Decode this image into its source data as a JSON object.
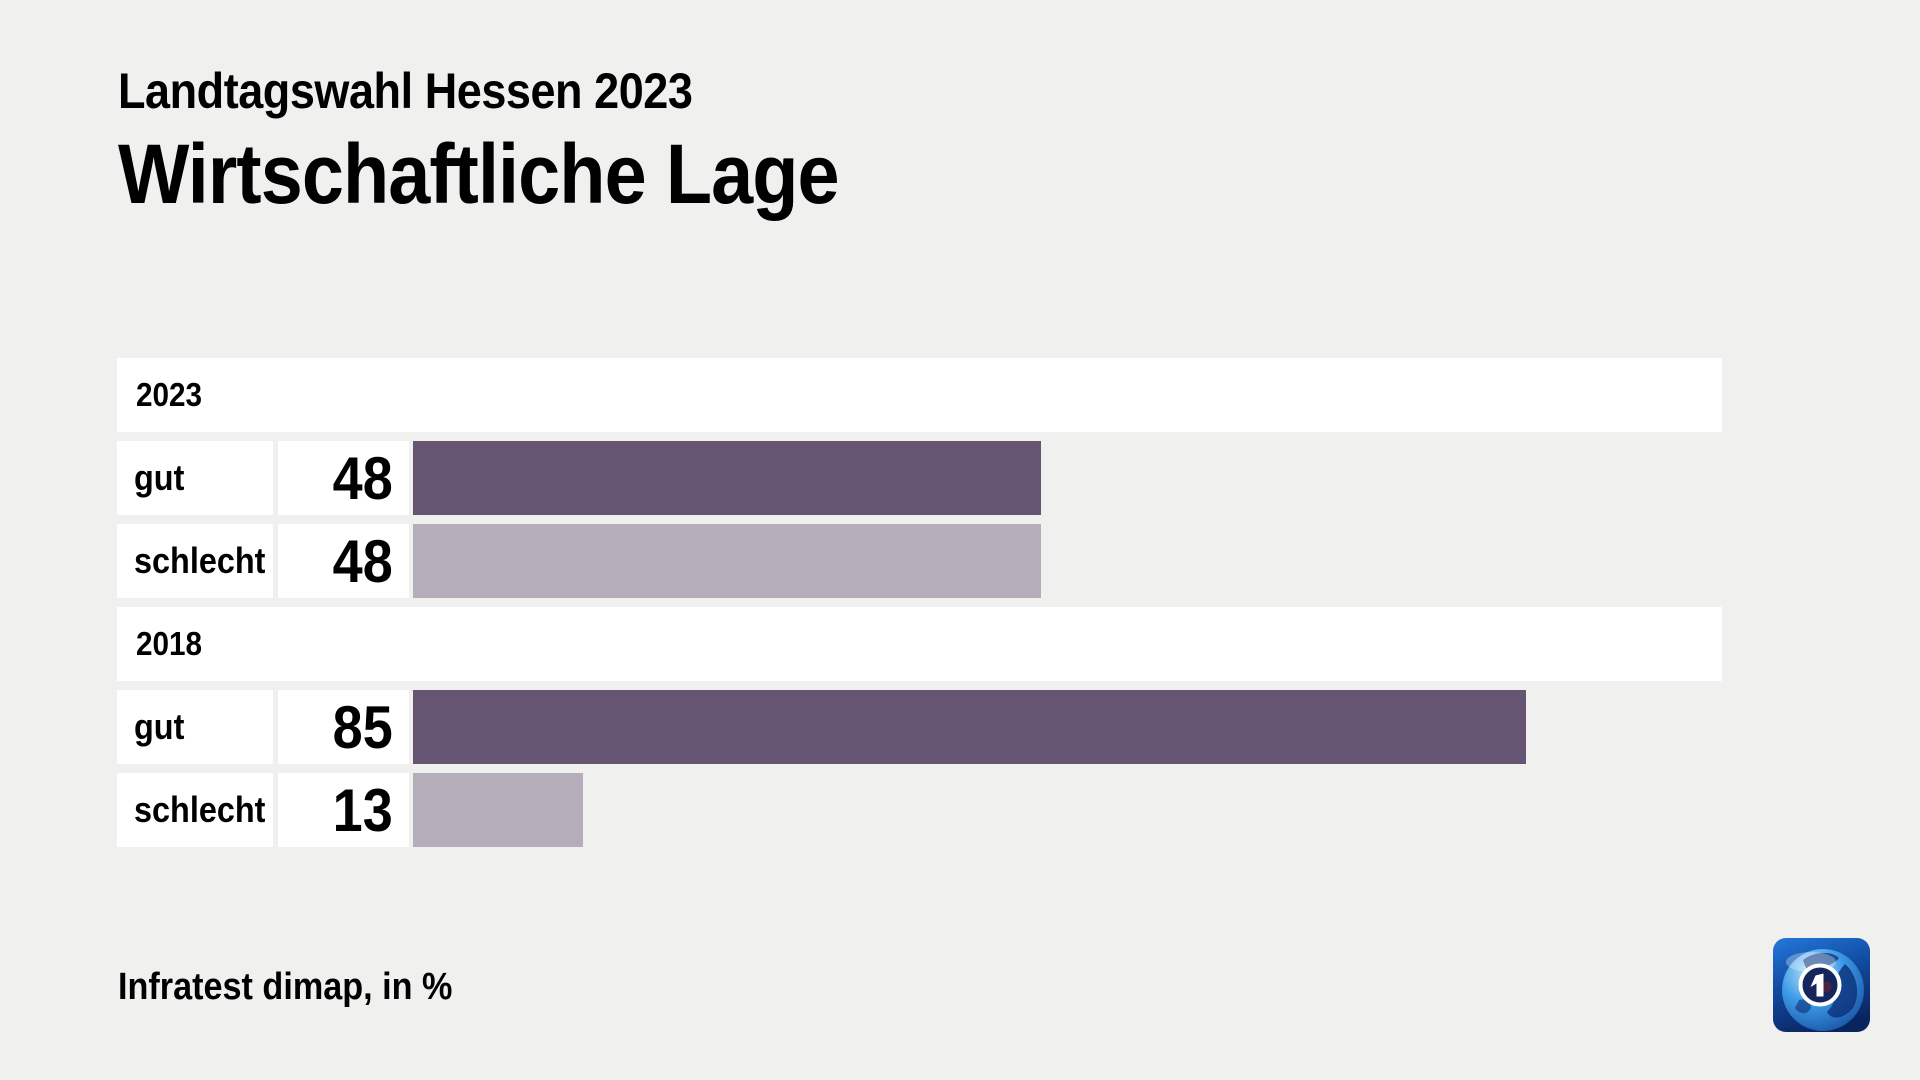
{
  "header": {
    "kicker": "Landtagswahl Hessen 2023",
    "title": "Wirtschaftliche Lage"
  },
  "chart_data": {
    "type": "bar",
    "orientation": "horizontal",
    "title": "Wirtschaftliche Lage",
    "subtitle": "Landtagswahl Hessen 2023",
    "unit": "%",
    "xlim": [
      0,
      100
    ],
    "axis_hidden": true,
    "colors": {
      "gut": "#655472",
      "schlecht": "#b5aeba"
    },
    "groups": [
      {
        "year": "2023",
        "rows": [
          {
            "label": "gut",
            "value": 48
          },
          {
            "label": "schlecht",
            "value": 48
          }
        ]
      },
      {
        "year": "2018",
        "rows": [
          {
            "label": "gut",
            "value": 85
          },
          {
            "label": "schlecht",
            "value": 13
          }
        ]
      }
    ],
    "source": "Infratest dimap, in %"
  },
  "footer": {
    "source": "Infratest dimap, in %"
  },
  "logo": {
    "icon": "ard-tagesschau-logo"
  },
  "palette": {
    "background": "#f0f0ef",
    "row_background": "#ffffff",
    "text": "#000000"
  }
}
